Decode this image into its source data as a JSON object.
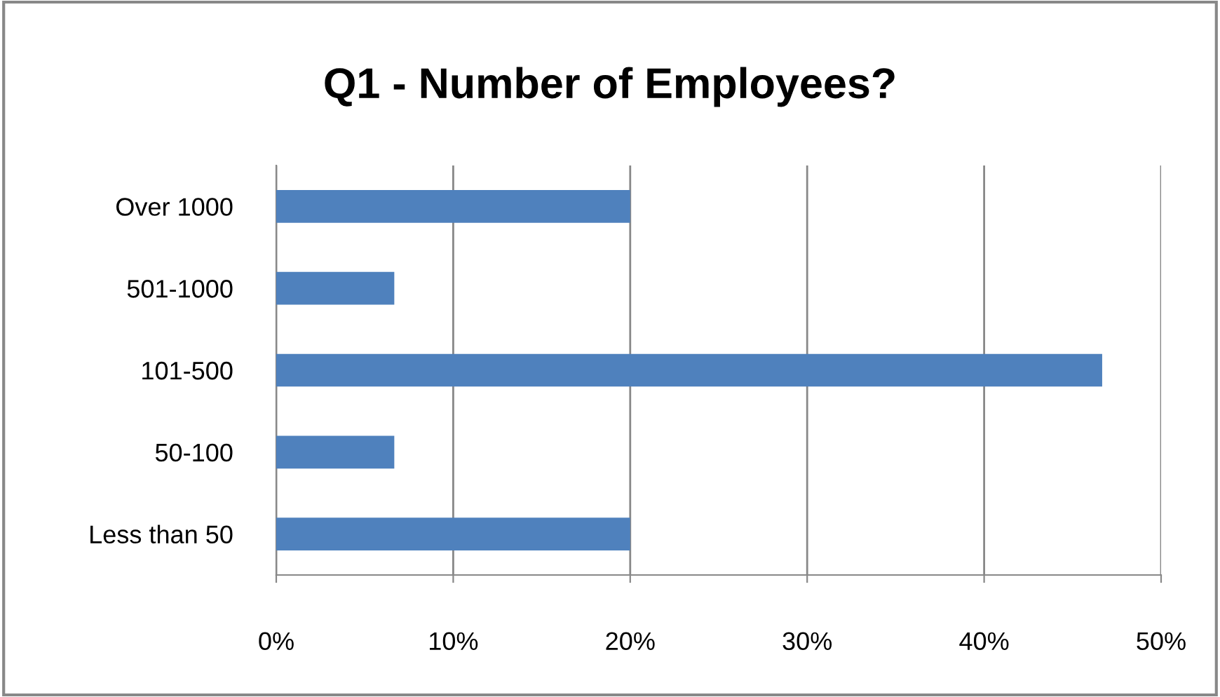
{
  "chart_data": {
    "type": "bar",
    "orientation": "horizontal",
    "title": "Q1 - Number of Employees?",
    "categories": [
      "Over 1000",
      "501-1000",
      "101-500",
      "50-100",
      "Less than 50"
    ],
    "values": [
      20,
      6.67,
      46.67,
      6.67,
      20
    ],
    "color": "#4f81bd",
    "xlim": [
      0,
      50
    ],
    "xticks": [
      {
        "value": 0,
        "label": "0%"
      },
      {
        "value": 10,
        "label": "10%"
      },
      {
        "value": 20,
        "label": "20%"
      },
      {
        "value": 30,
        "label": "30%"
      },
      {
        "value": 40,
        "label": "40%"
      },
      {
        "value": 50,
        "label": "50%"
      }
    ],
    "grid": "x",
    "legend": false
  }
}
